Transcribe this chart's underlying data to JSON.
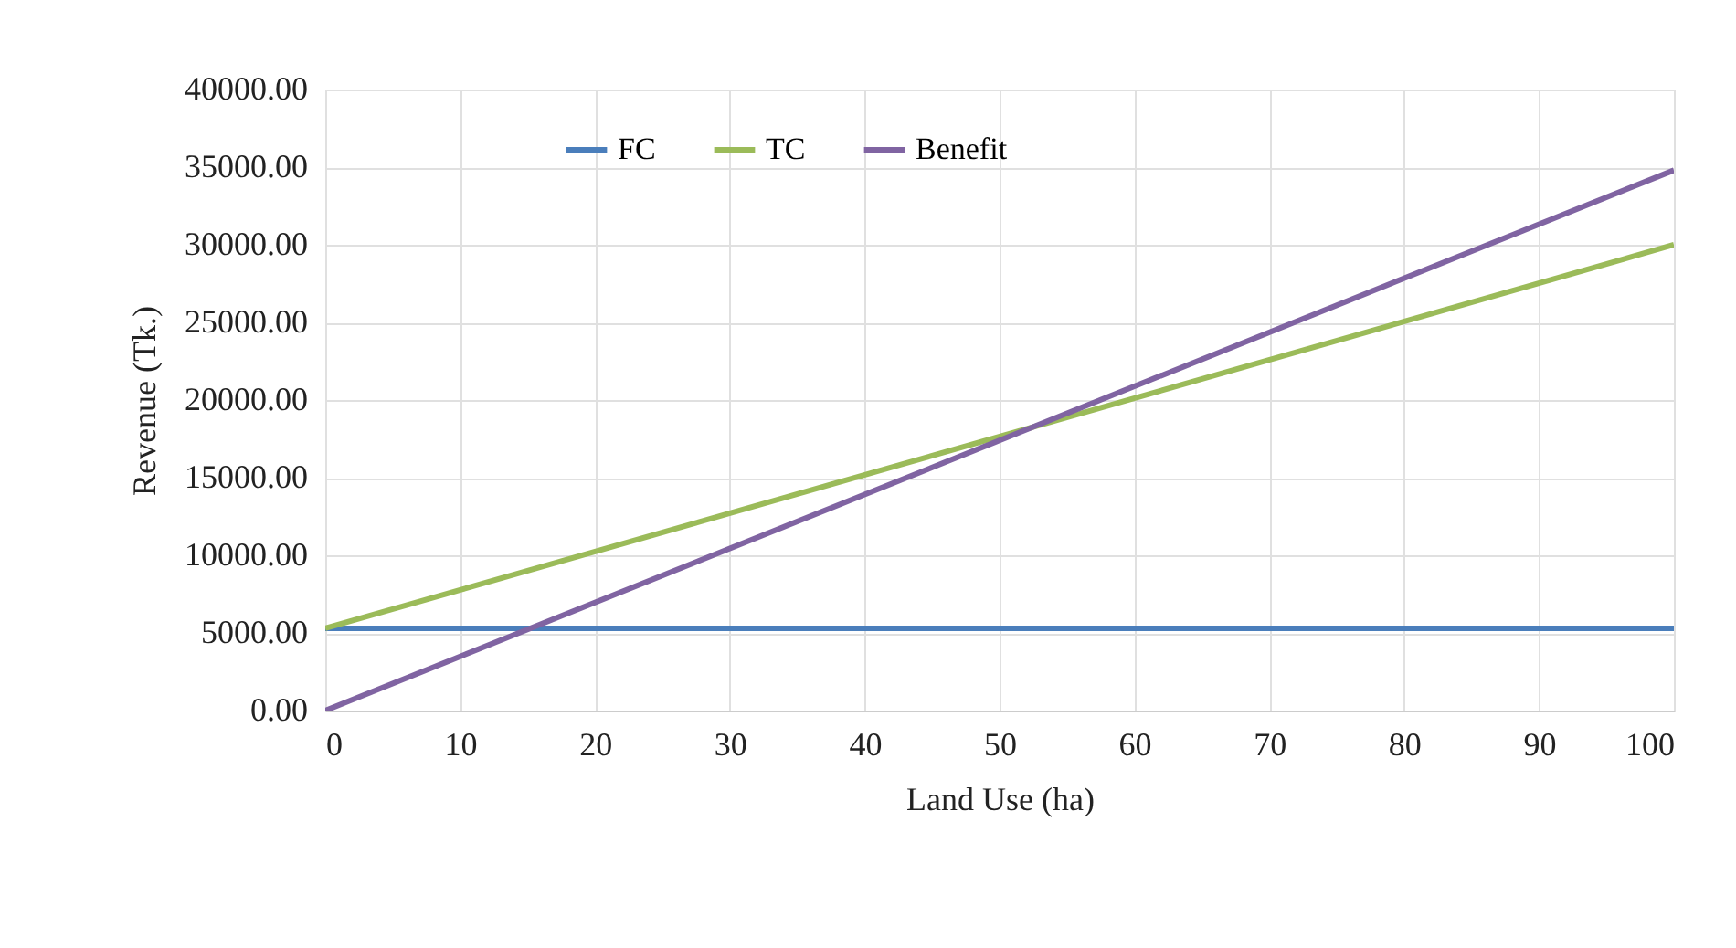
{
  "chart_data": {
    "type": "line",
    "xlabel": "Land Use (ha)",
    "ylabel": "Revenue (Tk.)",
    "xlim": [
      0,
      100
    ],
    "xticks": [
      0,
      10,
      20,
      30,
      40,
      50,
      60,
      70,
      80,
      90,
      100
    ],
    "ylim": [
      0,
      40000
    ],
    "yticks": [
      {
        "value": 0,
        "label": "0.00"
      },
      {
        "value": 5000,
        "label": "5000.00"
      },
      {
        "value": 10000,
        "label": "10000.00"
      },
      {
        "value": 15000,
        "label": "15000.00"
      },
      {
        "value": 20000,
        "label": "20000.00"
      },
      {
        "value": 25000,
        "label": "25000.00"
      },
      {
        "value": 30000,
        "label": "30000.00"
      },
      {
        "value": 35000,
        "label": "35000.00"
      },
      {
        "value": 40000,
        "label": "40000.00"
      }
    ],
    "x": [
      0,
      100
    ],
    "series": [
      {
        "name": "FC",
        "color": "#4a7ebb",
        "values": [
          5300,
          5300
        ]
      },
      {
        "name": "TC",
        "color": "#9bbb59",
        "values": [
          5300,
          30000
        ]
      },
      {
        "name": "Benefit",
        "color": "#8064a2",
        "values": [
          0,
          34800
        ]
      }
    ],
    "grid": true,
    "legend": "top",
    "marker": "none",
    "line_style": "solid"
  }
}
